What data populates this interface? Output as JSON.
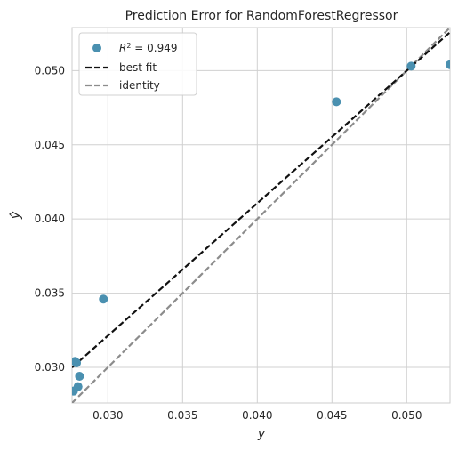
{
  "chart_data": {
    "type": "scatter",
    "title": "Prediction Error for RandomForestRegressor",
    "xlabel": "y",
    "ylabel": "ŷ",
    "xlim": [
      0.0276,
      0.0529
    ],
    "ylim": [
      0.0276,
      0.0529
    ],
    "xticks": [
      0.03,
      0.035,
      0.04,
      0.045,
      0.05
    ],
    "xtick_labels": [
      "0.030",
      "0.035",
      "0.040",
      "0.045",
      "0.050"
    ],
    "yticks": [
      0.03,
      0.035,
      0.04,
      0.045,
      0.05
    ],
    "ytick_labels": [
      "0.030",
      "0.035",
      "0.040",
      "0.045",
      "0.050"
    ],
    "grid": true,
    "legend_position": "top-left",
    "points": [
      {
        "x": 0.0278,
        "y": 0.0304
      },
      {
        "x": 0.0279,
        "y": 0.0303
      },
      {
        "x": 0.0277,
        "y": 0.0284
      },
      {
        "x": 0.028,
        "y": 0.0287
      },
      {
        "x": 0.0281,
        "y": 0.0294
      },
      {
        "x": 0.0297,
        "y": 0.0346
      },
      {
        "x": 0.0453,
        "y": 0.0479
      },
      {
        "x": 0.0503,
        "y": 0.0503
      },
      {
        "x": 0.0529,
        "y": 0.0504
      }
    ],
    "best_fit": {
      "slope": 0.8932,
      "intercept": 0.005335
    },
    "identity": {
      "slope": 1,
      "intercept": 0
    },
    "legend": {
      "r2_symbol": "R",
      "r2_superscript": "2",
      "r2_value_text": " = 0.949",
      "best_fit_label": "best fit",
      "identity_label": "identity"
    },
    "colors": {
      "points": "#4a90b0",
      "best_fit": "#111111",
      "identity": "#8c8c8c",
      "grid": "#d0d0d0",
      "axes_edge": "#cccccc"
    }
  }
}
